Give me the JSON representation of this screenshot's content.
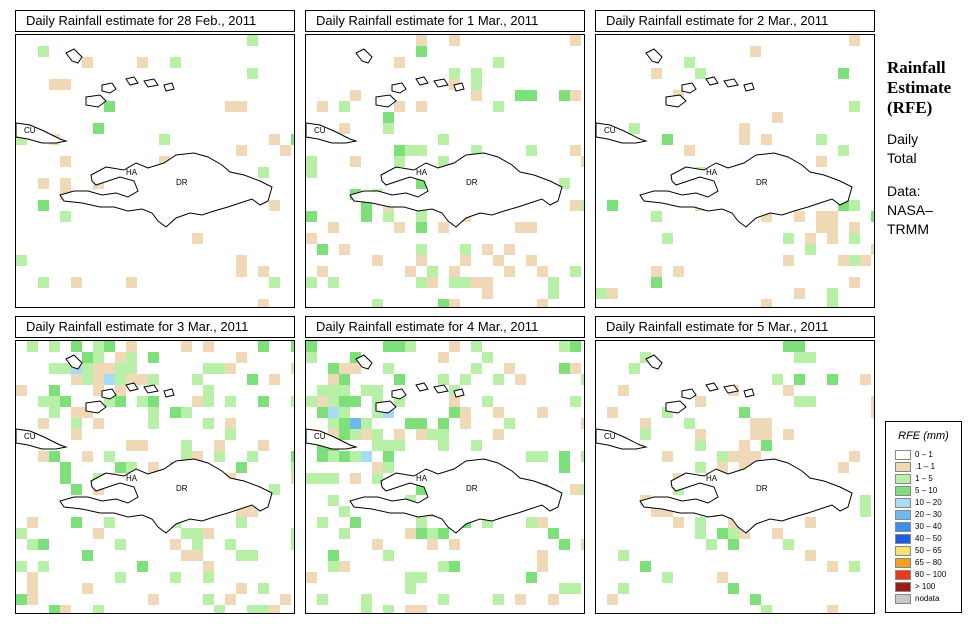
{
  "panels": [
    {
      "title": "Daily Rainfall estimate for  28 Feb., 2011",
      "seed": 11,
      "density": 0.07,
      "green": 0.35,
      "hot": []
    },
    {
      "title": "Daily Rainfall estimate for  1 Mar., 2011",
      "seed": 23,
      "density": 0.12,
      "green": 0.6,
      "hot": [
        [
          0.55,
          0.85,
          0.25
        ]
      ]
    },
    {
      "title": "Daily Rainfall estimate for  2 Mar., 2011",
      "seed": 37,
      "density": 0.05,
      "green": 0.35,
      "hot": [
        [
          0.85,
          0.7,
          0.4
        ]
      ]
    },
    {
      "title": "Daily Rainfall estimate for  3 Mar., 2011",
      "seed": 41,
      "density": 0.2,
      "green": 0.6,
      "hot": [
        [
          0.3,
          0.15,
          0.6
        ]
      ]
    },
    {
      "title": "Daily Rainfall estimate for  4 Mar., 2011",
      "seed": 53,
      "density": 0.22,
      "green": 0.75,
      "hot": [
        [
          0.15,
          0.3,
          0.7
        ]
      ]
    },
    {
      "title": "Daily Rainfall estimate for  5 Mar., 2011",
      "seed": 67,
      "density": 0.07,
      "green": 0.45,
      "hot": [
        [
          0.55,
          0.45,
          0.5
        ]
      ]
    }
  ],
  "labels": {
    "cu": "CU",
    "ha": "HA",
    "dr": "DR"
  },
  "side": {
    "title1": "Rainfall",
    "title2": "Estimate",
    "title3": "(RFE)",
    "daily": "Daily",
    "total": "Total",
    "data1": "Data:",
    "data2": "NASA–",
    "data3": "TRMM"
  },
  "legend": {
    "title": "RFE (mm)",
    "items": [
      {
        "label": "0 – 1",
        "color": "#ffffff"
      },
      {
        "label": ".1 – 1",
        "color": "#efd9b6"
      },
      {
        "label": "1 – 5",
        "color": "#b8f0a8"
      },
      {
        "label": "5 – 10",
        "color": "#7ee07a"
      },
      {
        "label": "10 – 20",
        "color": "#a8dcf4"
      },
      {
        "label": "20 – 30",
        "color": "#6cb8f0"
      },
      {
        "label": "30 – 40",
        "color": "#3a8ef0"
      },
      {
        "label": "40 – 50",
        "color": "#1a5ce6"
      },
      {
        "label": "50 – 65",
        "color": "#f6e070"
      },
      {
        "label": "65 – 80",
        "color": "#f6a020"
      },
      {
        "label": "80 – 100",
        "color": "#e83a14"
      },
      {
        "label": "> 100",
        "color": "#9c1c14"
      },
      {
        "label": "nodata",
        "color": "#c8c8c8"
      }
    ]
  }
}
